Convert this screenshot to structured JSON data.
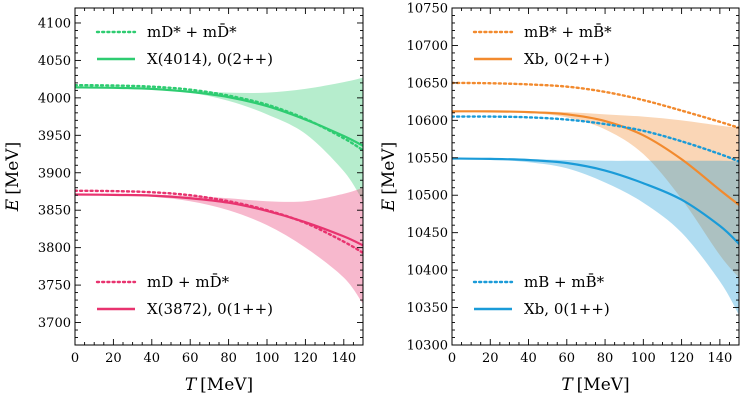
{
  "chart_data": [
    {
      "type": "line",
      "xlabel": "T [MeV]",
      "ylabel": "E [MeV]",
      "xlim": [
        0,
        150
      ],
      "ylim": [
        3670,
        4120
      ],
      "xticks": [
        0,
        20,
        40,
        60,
        80,
        100,
        120,
        140
      ],
      "yticks": [
        3700,
        3750,
        3800,
        3850,
        3900,
        3950,
        4000,
        4050,
        4100
      ],
      "grid": false,
      "legends": [
        {
          "placement": "top-left",
          "entries": [
            {
              "label": "m_{D*} + m_{̄D*}",
              "text": "mD* + mD̄*",
              "style": "dotted",
              "color": "#2ecc71"
            },
            {
              "label": "X(4014), 0(2++)",
              "text": "X(4014), 0(2++)",
              "style": "solid",
              "color": "#2ecc71"
            }
          ]
        },
        {
          "placement": "bottom-left",
          "entries": [
            {
              "label": "m_D + m_{̄D*}",
              "text": "mD + mD̄*",
              "style": "dotted",
              "color": "#e8336f"
            },
            {
              "label": "X(3872), 0(1++)",
              "text": "X(3872), 0(1++)",
              "style": "solid",
              "color": "#e8336f"
            }
          ]
        }
      ],
      "series": [
        {
          "name": "mD* + mD̄*",
          "style": "dotted",
          "color": "#2ecc71",
          "x": [
            0,
            20,
            40,
            60,
            80,
            100,
            120,
            140,
            150
          ],
          "y": [
            4017,
            4016.5,
            4015,
            4011,
            4003,
            3991,
            3972,
            3946,
            3930
          ]
        },
        {
          "name": "X(4014), 0(2++)",
          "style": "solid",
          "color": "#2ecc71",
          "x": [
            0,
            20,
            40,
            60,
            80,
            100,
            120,
            140,
            150
          ],
          "y": [
            4014,
            4013.5,
            4012,
            4008,
            4001,
            3989,
            3971,
            3949,
            3936
          ],
          "band_upper": [
            4014,
            4013.5,
            4012.5,
            4010,
            4007,
            4007,
            4012,
            4021,
            4027
          ],
          "band_lower": [
            4014,
            4013.5,
            4012,
            4007,
            3996,
            3978,
            3952,
            3902,
            3862
          ]
        },
        {
          "name": "mD + mD̄*",
          "style": "dotted",
          "color": "#e8336f",
          "x": [
            0,
            20,
            40,
            60,
            80,
            100,
            120,
            140,
            150
          ],
          "y": [
            3876,
            3875.5,
            3874,
            3870,
            3862,
            3850,
            3833,
            3808,
            3793
          ]
        },
        {
          "name": "X(3872), 0(1++)",
          "style": "solid",
          "color": "#e8336f",
          "x": [
            0,
            20,
            40,
            60,
            80,
            100,
            120,
            140,
            150
          ],
          "y": [
            3871,
            3870.5,
            3869.5,
            3866,
            3860,
            3849,
            3834,
            3815,
            3803
          ],
          "band_upper": [
            3872,
            3871.5,
            3871,
            3869,
            3866,
            3862,
            3862,
            3872,
            3880
          ],
          "band_lower": [
            3871,
            3870.5,
            3868,
            3862,
            3850,
            3830,
            3800,
            3760,
            3725
          ]
        }
      ]
    },
    {
      "type": "line",
      "xlabel": "T [MeV]",
      "ylabel": "E [MeV]",
      "xlim": [
        0,
        150
      ],
      "ylim": [
        10300,
        10750
      ],
      "xticks": [
        0,
        20,
        40,
        60,
        80,
        100,
        120,
        140
      ],
      "yticks": [
        10300,
        10350,
        10400,
        10450,
        10500,
        10550,
        10600,
        10650,
        10700,
        10750
      ],
      "grid": false,
      "legends": [
        {
          "placement": "top-left",
          "entries": [
            {
              "label": "m_{B*} + m_{̄B*}",
              "text": "mB* + mB̄*",
              "style": "dotted",
              "color": "#f28a2e"
            },
            {
              "label": "X_b, 0(2++)",
              "text": "Xb, 0(2++)",
              "style": "solid",
              "color": "#f28a2e"
            }
          ]
        },
        {
          "placement": "bottom-left",
          "entries": [
            {
              "label": "m_B + m_{̄B*}",
              "text": "mB + mB̄*",
              "style": "dotted",
              "color": "#1a9bd8"
            },
            {
              "label": "X_b, 0(1++)",
              "text": "Xb, 0(1++)",
              "style": "solid",
              "color": "#1a9bd8"
            }
          ]
        }
      ],
      "series": [
        {
          "name": "mB* + mB̄*",
          "style": "dotted",
          "color": "#f28a2e",
          "x": [
            0,
            20,
            40,
            60,
            80,
            100,
            120,
            140,
            150
          ],
          "y": [
            10650,
            10649.5,
            10648,
            10645,
            10638,
            10627,
            10613,
            10598,
            10590
          ]
        },
        {
          "name": "Xb, 0(2++)",
          "style": "solid",
          "color": "#f28a2e",
          "x": [
            0,
            20,
            40,
            60,
            80,
            100,
            120,
            140,
            150
          ],
          "y": [
            10612,
            10612,
            10611,
            10608,
            10599,
            10580,
            10548,
            10507,
            10487
          ]
        },
        {
          "name": "mB + mB̄*",
          "style": "dotted",
          "color": "#1a9bd8",
          "x": [
            0,
            20,
            40,
            60,
            80,
            100,
            120,
            140,
            150
          ],
          "y": [
            10605,
            10605,
            10604,
            10601,
            10595,
            10586,
            10572,
            10555,
            10545
          ]
        },
        {
          "name": "Xb, 0(1++)",
          "style": "solid",
          "color": "#1a9bd8",
          "x": [
            0,
            20,
            40,
            60,
            80,
            100,
            120,
            140,
            150
          ],
          "y": [
            10549,
            10548.5,
            10547,
            10543,
            10533,
            10516,
            10494,
            10459,
            10435
          ]
        }
      ],
      "bands": [
        {
          "series": "Xb, 0(2++)",
          "color": "#f28a2e",
          "x": [
            0,
            20,
            40,
            60,
            80,
            100,
            120,
            140,
            150
          ],
          "upper": [
            10613,
            10613,
            10612,
            10611,
            10608,
            10605,
            10600,
            10593,
            10590
          ],
          "lower": [
            10612,
            10612,
            10610,
            10604,
            10588,
            10555,
            10495,
            10420,
            10390
          ]
        },
        {
          "series": "Xb, 0(1++)",
          "color": "#1a9bd8",
          "x": [
            0,
            20,
            40,
            60,
            80,
            100,
            120,
            140,
            150
          ],
          "upper": [
            10550,
            10549,
            10548,
            10547,
            10546,
            10546,
            10546,
            10546,
            10545
          ],
          "lower": [
            10549,
            10548,
            10544,
            10536,
            10517,
            10490,
            10450,
            10385,
            10340
          ]
        }
      ]
    }
  ]
}
